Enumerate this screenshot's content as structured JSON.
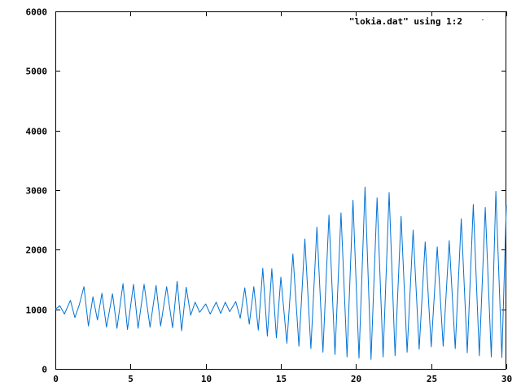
{
  "chart_data": {
    "type": "line",
    "title": "",
    "xlabel": "",
    "ylabel": "",
    "xlim": [
      0,
      30
    ],
    "ylim": [
      0,
      6000
    ],
    "x_ticks": [
      "0",
      "5",
      "10",
      "15",
      "20",
      "25",
      "30"
    ],
    "y_ticks": [
      "0",
      "1000",
      "2000",
      "3000",
      "4000",
      "5000",
      "6000"
    ],
    "grid": false,
    "legend_position": "top-right",
    "series": [
      {
        "name": "\"lokia.dat\" using 1:2",
        "color": "#0072d4",
        "points": [
          [
            0.0,
            1000
          ],
          [
            0.3,
            1060
          ],
          [
            0.6,
            920
          ],
          [
            1.0,
            1150
          ],
          [
            1.3,
            860
          ],
          [
            1.6,
            1080
          ],
          [
            1.9,
            1380
          ],
          [
            2.2,
            720
          ],
          [
            2.5,
            1210
          ],
          [
            2.8,
            820
          ],
          [
            3.1,
            1270
          ],
          [
            3.4,
            700
          ],
          [
            3.8,
            1260
          ],
          [
            4.1,
            680
          ],
          [
            4.5,
            1430
          ],
          [
            4.8,
            660
          ],
          [
            5.2,
            1420
          ],
          [
            5.5,
            680
          ],
          [
            5.9,
            1420
          ],
          [
            6.3,
            700
          ],
          [
            6.7,
            1400
          ],
          [
            7.0,
            720
          ],
          [
            7.4,
            1380
          ],
          [
            7.8,
            690
          ],
          [
            8.1,
            1470
          ],
          [
            8.4,
            640
          ],
          [
            8.7,
            1370
          ],
          [
            9.0,
            900
          ],
          [
            9.3,
            1120
          ],
          [
            9.6,
            950
          ],
          [
            10.0,
            1090
          ],
          [
            10.3,
            920
          ],
          [
            10.7,
            1120
          ],
          [
            11.0,
            930
          ],
          [
            11.3,
            1120
          ],
          [
            11.6,
            960
          ],
          [
            12.0,
            1130
          ],
          [
            12.3,
            850
          ],
          [
            12.6,
            1360
          ],
          [
            12.9,
            750
          ],
          [
            13.2,
            1380
          ],
          [
            13.5,
            650
          ],
          [
            13.8,
            1690
          ],
          [
            14.1,
            550
          ],
          [
            14.4,
            1680
          ],
          [
            14.7,
            520
          ],
          [
            15.0,
            1540
          ],
          [
            15.4,
            430
          ],
          [
            15.8,
            1930
          ],
          [
            16.2,
            380
          ],
          [
            16.6,
            2180
          ],
          [
            17.0,
            340
          ],
          [
            17.4,
            2380
          ],
          [
            17.8,
            280
          ],
          [
            18.2,
            2580
          ],
          [
            18.6,
            240
          ],
          [
            19.0,
            2620
          ],
          [
            19.4,
            200
          ],
          [
            19.8,
            2830
          ],
          [
            20.2,
            180
          ],
          [
            20.6,
            3050
          ],
          [
            21.0,
            160
          ],
          [
            21.4,
            2870
          ],
          [
            21.8,
            200
          ],
          [
            22.2,
            2960
          ],
          [
            22.6,
            220
          ],
          [
            23.0,
            2560
          ],
          [
            23.4,
            280
          ],
          [
            23.8,
            2330
          ],
          [
            24.2,
            330
          ],
          [
            24.6,
            2130
          ],
          [
            25.0,
            370
          ],
          [
            25.4,
            2050
          ],
          [
            25.8,
            380
          ],
          [
            26.2,
            2150
          ],
          [
            26.6,
            340
          ],
          [
            27.0,
            2520
          ],
          [
            27.4,
            270
          ],
          [
            27.8,
            2760
          ],
          [
            28.2,
            220
          ],
          [
            28.6,
            2710
          ],
          [
            29.0,
            200
          ],
          [
            29.3,
            2980
          ],
          [
            29.7,
            190
          ],
          [
            30.0,
            2750
          ]
        ]
      }
    ]
  }
}
